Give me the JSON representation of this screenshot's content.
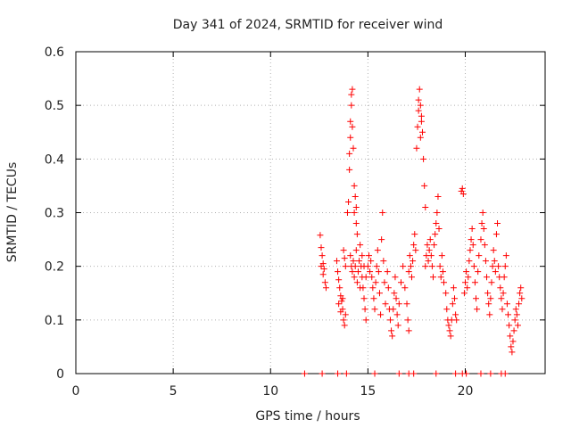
{
  "chart_data": {
    "type": "scatter",
    "title": "Day 341 of 2024, SRMTID for receiver wind",
    "xlabel": "GPS time / hours",
    "ylabel": "SRMTID / TECUs",
    "xlim": [
      0,
      24.1
    ],
    "ylim": [
      0,
      0.6
    ],
    "x_ticks": [
      "0",
      "5",
      "10",
      "15",
      "20"
    ],
    "y_ticks": [
      "0",
      "0.1",
      "0.2",
      "0.3",
      "0.4",
      "0.5",
      "0.6"
    ],
    "grid": true,
    "marker": "plus",
    "color": "#ff0000",
    "series": [
      {
        "name": "SRMTID",
        "points": [
          [
            11.75,
            0.0
          ],
          [
            12.65,
            0.0
          ],
          [
            13.45,
            0.0
          ],
          [
            13.9,
            0.0
          ],
          [
            15.35,
            0.0
          ],
          [
            16.6,
            0.0
          ],
          [
            17.1,
            0.0
          ],
          [
            17.35,
            0.0
          ],
          [
            18.5,
            0.0
          ],
          [
            19.5,
            0.0
          ],
          [
            19.85,
            0.0
          ],
          [
            20.05,
            0.0
          ],
          [
            20.8,
            0.0
          ],
          [
            21.3,
            0.0
          ],
          [
            21.85,
            0.0
          ],
          [
            22.05,
            0.0
          ],
          [
            12.55,
            0.258
          ],
          [
            12.6,
            0.235
          ],
          [
            12.65,
            0.22
          ],
          [
            12.7,
            0.205
          ],
          [
            12.75,
            0.195
          ],
          [
            12.8,
            0.17
          ],
          [
            12.85,
            0.16
          ],
          [
            12.6,
            0.2
          ],
          [
            12.7,
            0.185
          ],
          [
            13.4,
            0.21
          ],
          [
            13.45,
            0.19
          ],
          [
            13.5,
            0.175
          ],
          [
            13.55,
            0.16
          ],
          [
            13.6,
            0.145
          ],
          [
            13.65,
            0.135
          ],
          [
            13.7,
            0.12
          ],
          [
            13.75,
            0.1
          ],
          [
            13.8,
            0.09
          ],
          [
            13.85,
            0.11
          ],
          [
            13.5,
            0.13
          ],
          [
            13.6,
            0.115
          ],
          [
            13.7,
            0.14
          ],
          [
            13.75,
            0.23
          ],
          [
            13.8,
            0.215
          ],
          [
            13.85,
            0.2
          ],
          [
            13.95,
            0.3
          ],
          [
            14.0,
            0.32
          ],
          [
            14.05,
            0.38
          ],
          [
            14.05,
            0.41
          ],
          [
            14.1,
            0.44
          ],
          [
            14.1,
            0.47
          ],
          [
            14.15,
            0.5
          ],
          [
            14.15,
            0.52
          ],
          [
            14.2,
            0.53
          ],
          [
            14.2,
            0.46
          ],
          [
            14.25,
            0.42
          ],
          [
            14.3,
            0.35
          ],
          [
            14.35,
            0.33
          ],
          [
            14.4,
            0.28
          ],
          [
            14.45,
            0.26
          ],
          [
            14.4,
            0.31
          ],
          [
            14.3,
            0.3
          ],
          [
            14.1,
            0.22
          ],
          [
            14.15,
            0.2
          ],
          [
            14.2,
            0.19
          ],
          [
            14.25,
            0.21
          ],
          [
            14.3,
            0.18
          ],
          [
            14.35,
            0.2
          ],
          [
            14.4,
            0.23
          ],
          [
            14.45,
            0.17
          ],
          [
            14.5,
            0.19
          ],
          [
            14.55,
            0.21
          ],
          [
            14.6,
            0.24
          ],
          [
            14.65,
            0.2
          ],
          [
            14.7,
            0.18
          ],
          [
            14.75,
            0.16
          ],
          [
            14.8,
            0.14
          ],
          [
            14.85,
            0.12
          ],
          [
            14.9,
            0.1
          ],
          [
            14.6,
            0.16
          ],
          [
            14.7,
            0.22
          ],
          [
            14.8,
            0.2
          ],
          [
            14.9,
            0.18
          ],
          [
            15.0,
            0.2
          ],
          [
            15.05,
            0.22
          ],
          [
            15.1,
            0.19
          ],
          [
            15.15,
            0.21
          ],
          [
            15.2,
            0.18
          ],
          [
            15.25,
            0.16
          ],
          [
            15.3,
            0.14
          ],
          [
            15.35,
            0.12
          ],
          [
            15.4,
            0.17
          ],
          [
            15.45,
            0.2
          ],
          [
            15.5,
            0.23
          ],
          [
            15.55,
            0.19
          ],
          [
            15.6,
            0.15
          ],
          [
            15.65,
            0.11
          ],
          [
            15.7,
            0.25
          ],
          [
            15.75,
            0.3
          ],
          [
            15.8,
            0.21
          ],
          [
            15.85,
            0.17
          ],
          [
            15.9,
            0.13
          ],
          [
            16.0,
            0.19
          ],
          [
            16.05,
            0.16
          ],
          [
            16.1,
            0.12
          ],
          [
            16.15,
            0.1
          ],
          [
            16.2,
            0.08
          ],
          [
            16.25,
            0.07
          ],
          [
            16.3,
            0.12
          ],
          [
            16.35,
            0.15
          ],
          [
            16.4,
            0.18
          ],
          [
            16.45,
            0.14
          ],
          [
            16.5,
            0.11
          ],
          [
            16.55,
            0.09
          ],
          [
            16.6,
            0.13
          ],
          [
            16.7,
            0.17
          ],
          [
            16.8,
            0.2
          ],
          [
            16.9,
            0.16
          ],
          [
            17.0,
            0.13
          ],
          [
            17.05,
            0.1
          ],
          [
            17.1,
            0.08
          ],
          [
            17.1,
            0.19
          ],
          [
            17.15,
            0.22
          ],
          [
            17.2,
            0.2
          ],
          [
            17.25,
            0.18
          ],
          [
            17.3,
            0.21
          ],
          [
            17.35,
            0.24
          ],
          [
            17.4,
            0.26
          ],
          [
            17.45,
            0.23
          ],
          [
            17.5,
            0.42
          ],
          [
            17.55,
            0.46
          ],
          [
            17.6,
            0.49
          ],
          [
            17.6,
            0.51
          ],
          [
            17.65,
            0.53
          ],
          [
            17.7,
            0.5
          ],
          [
            17.75,
            0.48
          ],
          [
            17.8,
            0.45
          ],
          [
            17.85,
            0.4
          ],
          [
            17.9,
            0.35
          ],
          [
            17.95,
            0.31
          ],
          [
            17.7,
            0.44
          ],
          [
            17.75,
            0.47
          ],
          [
            17.95,
            0.2
          ],
          [
            18.0,
            0.22
          ],
          [
            18.05,
            0.24
          ],
          [
            18.1,
            0.21
          ],
          [
            18.15,
            0.23
          ],
          [
            18.2,
            0.25
          ],
          [
            18.25,
            0.22
          ],
          [
            18.3,
            0.2
          ],
          [
            18.35,
            0.18
          ],
          [
            18.4,
            0.24
          ],
          [
            18.45,
            0.26
          ],
          [
            18.5,
            0.28
          ],
          [
            18.55,
            0.3
          ],
          [
            18.6,
            0.33
          ],
          [
            18.65,
            0.27
          ],
          [
            18.7,
            0.2
          ],
          [
            18.75,
            0.18
          ],
          [
            18.8,
            0.22
          ],
          [
            18.85,
            0.19
          ],
          [
            18.9,
            0.17
          ],
          [
            19.0,
            0.15
          ],
          [
            19.05,
            0.12
          ],
          [
            19.1,
            0.1
          ],
          [
            19.15,
            0.09
          ],
          [
            19.2,
            0.08
          ],
          [
            19.25,
            0.07
          ],
          [
            19.3,
            0.1
          ],
          [
            19.35,
            0.13
          ],
          [
            19.4,
            0.16
          ],
          [
            19.45,
            0.14
          ],
          [
            19.5,
            0.11
          ],
          [
            19.55,
            0.1
          ],
          [
            19.8,
            0.34
          ],
          [
            19.85,
            0.345
          ],
          [
            19.9,
            0.335
          ],
          [
            19.95,
            0.15
          ],
          [
            20.0,
            0.17
          ],
          [
            20.05,
            0.19
          ],
          [
            20.1,
            0.16
          ],
          [
            20.15,
            0.18
          ],
          [
            20.2,
            0.21
          ],
          [
            20.25,
            0.23
          ],
          [
            20.3,
            0.25
          ],
          [
            20.35,
            0.27
          ],
          [
            20.4,
            0.24
          ],
          [
            20.45,
            0.2
          ],
          [
            20.5,
            0.17
          ],
          [
            20.55,
            0.14
          ],
          [
            20.6,
            0.12
          ],
          [
            20.65,
            0.19
          ],
          [
            20.7,
            0.22
          ],
          [
            20.8,
            0.25
          ],
          [
            20.85,
            0.28
          ],
          [
            20.9,
            0.3
          ],
          [
            20.95,
            0.27
          ],
          [
            21.0,
            0.24
          ],
          [
            21.05,
            0.21
          ],
          [
            21.1,
            0.18
          ],
          [
            21.15,
            0.15
          ],
          [
            21.2,
            0.13
          ],
          [
            21.25,
            0.11
          ],
          [
            21.3,
            0.14
          ],
          [
            21.35,
            0.17
          ],
          [
            21.4,
            0.2
          ],
          [
            21.45,
            0.23
          ],
          [
            21.5,
            0.21
          ],
          [
            21.55,
            0.19
          ],
          [
            21.6,
            0.26
          ],
          [
            21.65,
            0.28
          ],
          [
            21.7,
            0.2
          ],
          [
            21.75,
            0.18
          ],
          [
            21.8,
            0.16
          ],
          [
            21.85,
            0.14
          ],
          [
            21.9,
            0.12
          ],
          [
            21.95,
            0.15
          ],
          [
            22.0,
            0.18
          ],
          [
            22.05,
            0.2
          ],
          [
            22.1,
            0.22
          ],
          [
            22.15,
            0.13
          ],
          [
            22.2,
            0.11
          ],
          [
            22.25,
            0.09
          ],
          [
            22.3,
            0.07
          ],
          [
            22.35,
            0.05
          ],
          [
            22.4,
            0.04
          ],
          [
            22.45,
            0.06
          ],
          [
            22.5,
            0.08
          ],
          [
            22.55,
            0.1
          ],
          [
            22.6,
            0.12
          ],
          [
            22.65,
            0.11
          ],
          [
            22.7,
            0.09
          ],
          [
            22.75,
            0.13
          ],
          [
            22.8,
            0.15
          ],
          [
            22.85,
            0.16
          ],
          [
            22.9,
            0.14
          ]
        ]
      }
    ]
  }
}
